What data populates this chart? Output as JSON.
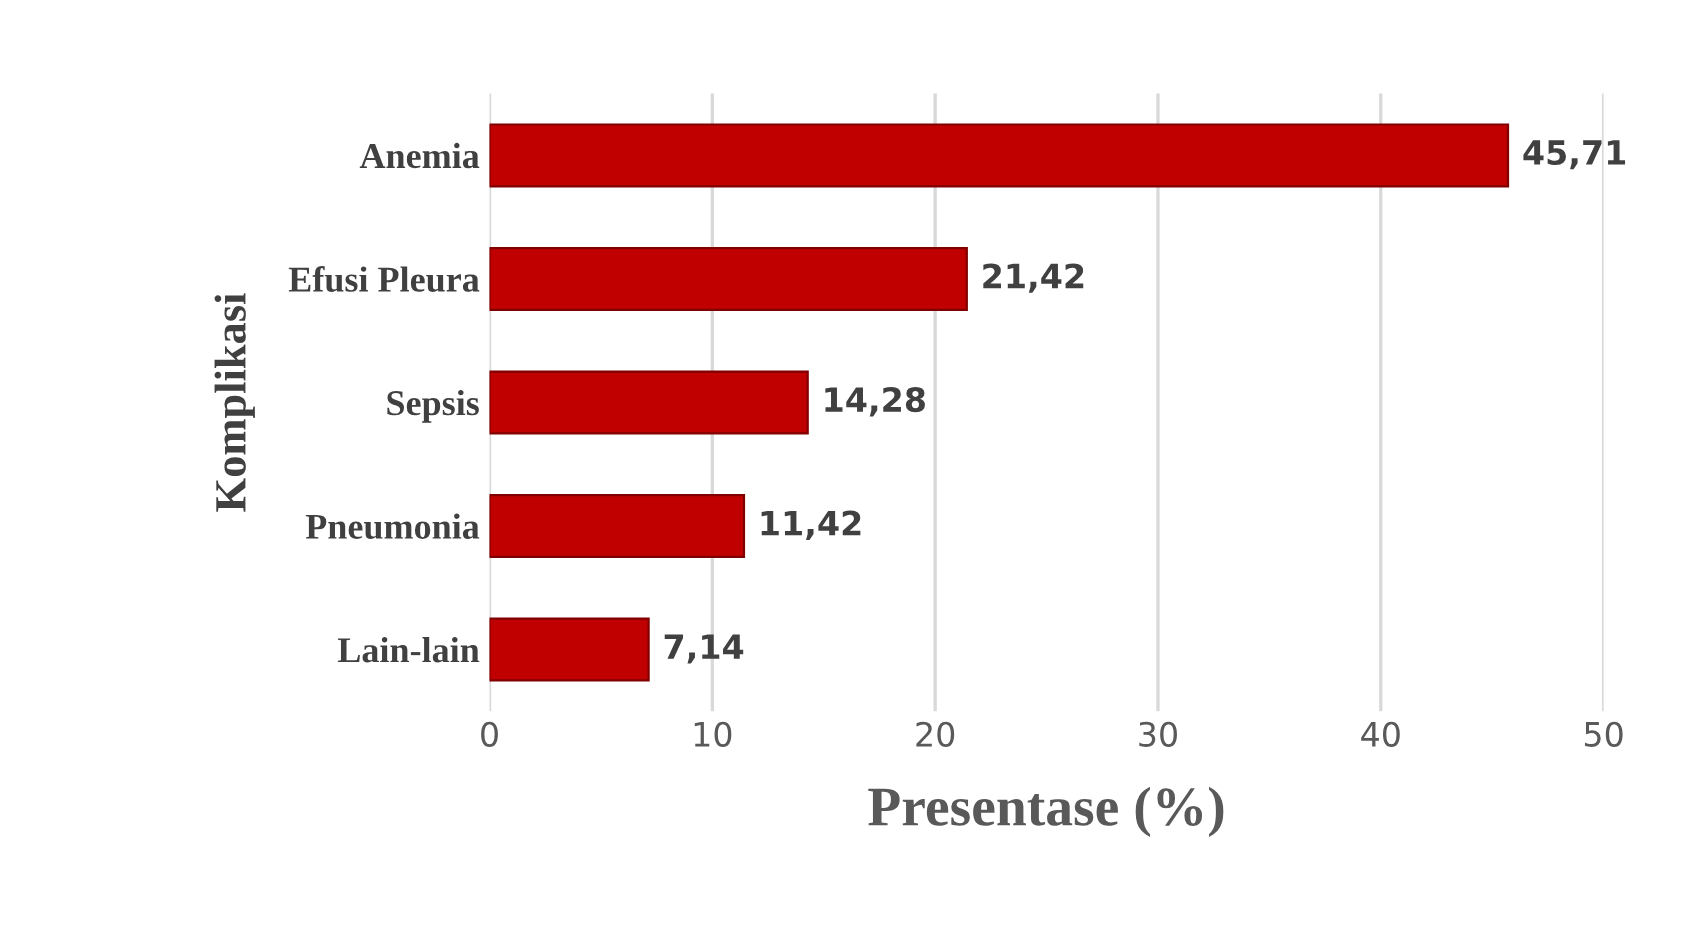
{
  "chart_data": {
    "type": "bar",
    "orientation": "horizontal",
    "xlabel": "Presentase (%)",
    "ylabel": "Komplikasi",
    "categories": [
      "Anemia",
      "Efusi Pleura",
      "Sepsis",
      "Pneumonia",
      "Lain-lain"
    ],
    "values": [
      45.71,
      21.42,
      14.28,
      11.42,
      7.14
    ],
    "value_labels": [
      "45,71",
      "21,42",
      "14,28",
      "11,42",
      "7,14"
    ],
    "color": "#c00000",
    "xlim": [
      0,
      50
    ],
    "xticks": [
      0,
      10,
      20,
      30,
      40,
      50
    ],
    "grid": "x"
  }
}
